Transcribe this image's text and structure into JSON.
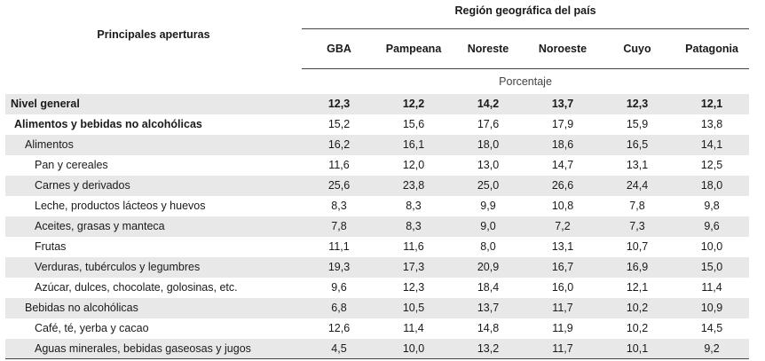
{
  "header": {
    "stub": "Principales aperturas",
    "group": "Región geográfica del país",
    "columns": [
      "GBA",
      "Pampeana",
      "Noreste",
      "Noroeste",
      "Cuyo",
      "Patagonia"
    ]
  },
  "unit": "Porcentaje",
  "rows": [
    {
      "label": "Nivel general",
      "values": [
        "12,3",
        "12,2",
        "14,2",
        "13,7",
        "12,3",
        "12,1"
      ]
    },
    {
      "label": "Alimentos y bebidas no alcohólicas",
      "values": [
        "15,2",
        "15,6",
        "17,6",
        "17,9",
        "15,9",
        "13,8"
      ]
    },
    {
      "label": "Alimentos",
      "values": [
        "16,2",
        "16,1",
        "18,0",
        "18,6",
        "16,5",
        "14,1"
      ]
    },
    {
      "label": "Pan y cereales",
      "values": [
        "11,6",
        "12,0",
        "13,0",
        "14,7",
        "13,1",
        "12,5"
      ]
    },
    {
      "label": "Carnes y derivados",
      "values": [
        "25,6",
        "23,8",
        "25,0",
        "26,6",
        "24,4",
        "18,0"
      ]
    },
    {
      "label": "Leche, productos lácteos y huevos",
      "values": [
        "8,3",
        "8,3",
        "9,9",
        "10,8",
        "7,8",
        "9,8"
      ]
    },
    {
      "label": "Aceites, grasas y manteca",
      "values": [
        "7,8",
        "8,3",
        "9,0",
        "7,2",
        "7,3",
        "9,6"
      ]
    },
    {
      "label": "Frutas",
      "values": [
        "11,1",
        "11,6",
        "8,0",
        "13,1",
        "10,7",
        "10,0"
      ]
    },
    {
      "label": "Verduras, tubérculos y legumbres",
      "values": [
        "19,3",
        "17,3",
        "20,9",
        "16,7",
        "16,9",
        "15,0"
      ]
    },
    {
      "label": "Azúcar, dulces, chocolate, golosinas, etc.",
      "values": [
        "9,6",
        "12,3",
        "18,4",
        "16,0",
        "12,1",
        "11,4"
      ]
    },
    {
      "label": "Bebidas no alcohólicas",
      "values": [
        "6,8",
        "10,5",
        "13,7",
        "11,7",
        "10,2",
        "10,9"
      ]
    },
    {
      "label": "Café, té, yerba y cacao",
      "values": [
        "12,6",
        "11,4",
        "14,8",
        "11,9",
        "10,2",
        "14,5"
      ]
    },
    {
      "label": "Aguas minerales, bebidas gaseosas y jugos",
      "values": [
        "4,5",
        "10,0",
        "13,2",
        "11,7",
        "10,1",
        "9,2"
      ]
    }
  ]
}
